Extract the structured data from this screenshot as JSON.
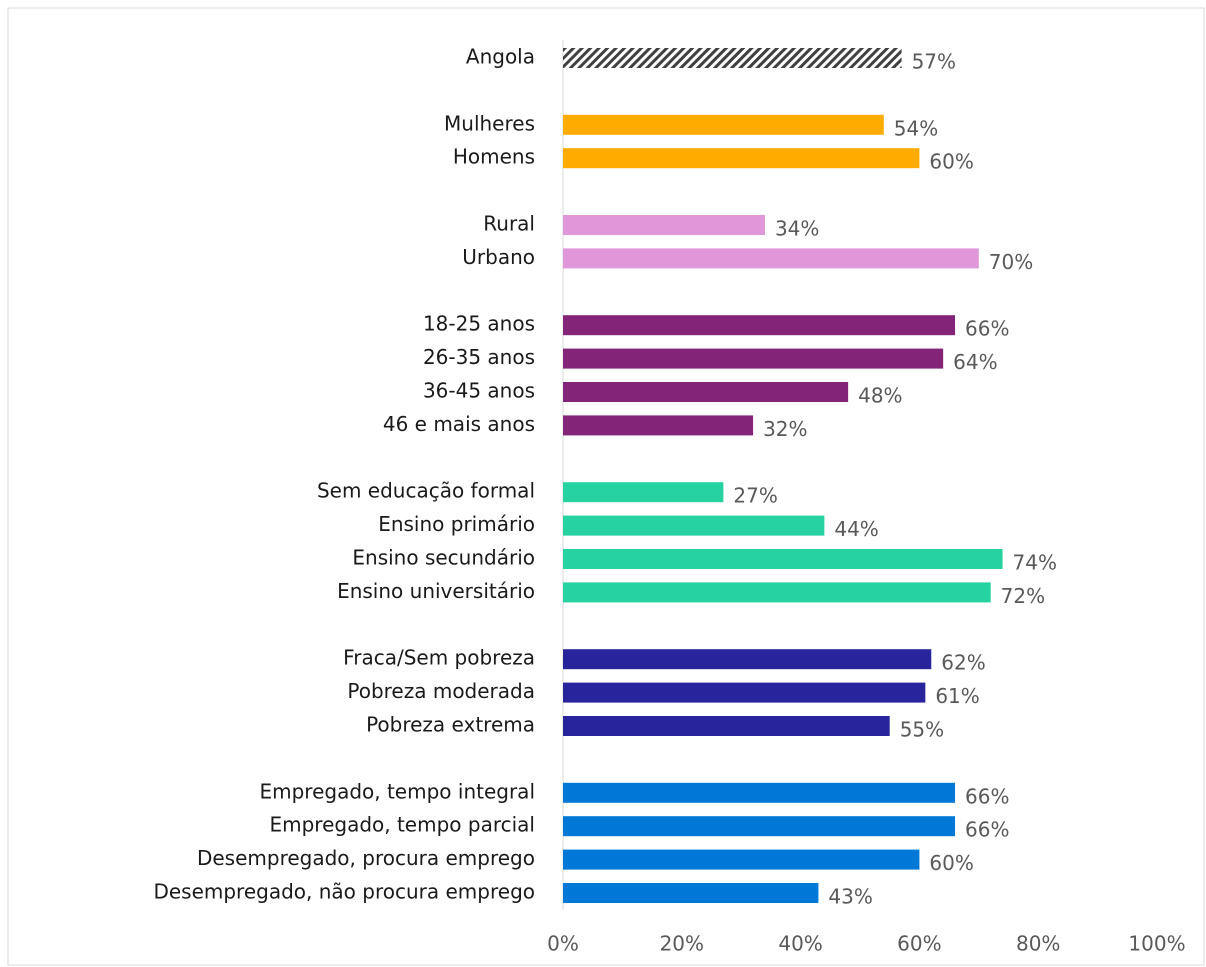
{
  "chart_data": {
    "type": "barh",
    "categories": [
      "Angola",
      null,
      "Mulheres",
      "Homens",
      null,
      "Rural",
      "Urbano",
      null,
      "18-25 anos",
      "26-35 anos",
      "36-45 anos",
      "46 e mais anos",
      null,
      "Sem educação formal",
      "Ensino primário",
      "Ensino secundário",
      "Ensino universitário",
      null,
      "Fraca/Sem pobreza",
      "Pobreza moderada",
      "Pobreza extrema",
      null,
      "Empregado, tempo integral",
      "Empregado, tempo parcial",
      "Desempregado, procura emprego",
      "Desempregado, não procura emprego"
    ],
    "values": [
      57,
      null,
      54,
      60,
      null,
      34,
      70,
      null,
      66,
      64,
      48,
      32,
      null,
      27,
      44,
      74,
      72,
      null,
      62,
      61,
      55,
      null,
      66,
      66,
      60,
      43
    ],
    "value_labels": [
      "57%",
      null,
      "54%",
      "60%",
      null,
      "34%",
      "70%",
      null,
      "66%",
      "64%",
      "48%",
      "32%",
      null,
      "27%",
      "44%",
      "74%",
      "72%",
      null,
      "62%",
      "61%",
      "55%",
      null,
      "66%",
      "66%",
      "60%",
      "43%"
    ],
    "colors": [
      "#404040",
      null,
      "#ffab00",
      "#ffab00",
      null,
      "#e097da",
      "#e097da",
      null,
      "#842478",
      "#842478",
      "#842478",
      "#842478",
      null,
      "#26d3a0",
      "#26d3a0",
      "#26d3a0",
      "#26d3a0",
      null,
      "#28259c",
      "#28259c",
      "#28259c",
      null,
      "#0078d7",
      "#0078d7",
      "#0078d7",
      "#0078d7"
    ],
    "patterns": [
      "hatch",
      null,
      null,
      null,
      null,
      null,
      null,
      null,
      null,
      null,
      null,
      null,
      null,
      null,
      null,
      null,
      null,
      null,
      null,
      null,
      null,
      null,
      null,
      null,
      null,
      null
    ],
    "xlim": [
      0,
      100
    ],
    "xticks": [
      {
        "value": 0,
        "label": "0%"
      },
      {
        "value": 20,
        "label": "20%"
      },
      {
        "value": 40,
        "label": "40%"
      },
      {
        "value": 60,
        "label": "60%"
      },
      {
        "value": 80,
        "label": "80%"
      },
      {
        "value": 100,
        "label": "100%"
      }
    ]
  }
}
